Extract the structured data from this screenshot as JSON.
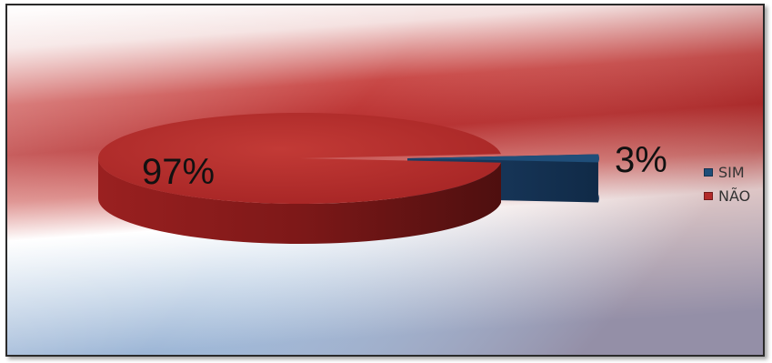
{
  "chart_data": {
    "type": "pie",
    "style": "3d-exploded",
    "slices": [
      {
        "name": "SIM",
        "value": 3,
        "label": "3%",
        "color": "#1f4e79"
      },
      {
        "name": "NÃO",
        "value": 97,
        "label": "97%",
        "color": "#b22a2a"
      }
    ],
    "legend": {
      "placement": "right",
      "entries": [
        "SIM",
        "NÃO"
      ]
    },
    "title": ""
  },
  "colors": {
    "background_red": "#c0312f",
    "background_blue": "#9fb8d8",
    "sim": "#1f4e79",
    "nao": "#b22a2a"
  }
}
